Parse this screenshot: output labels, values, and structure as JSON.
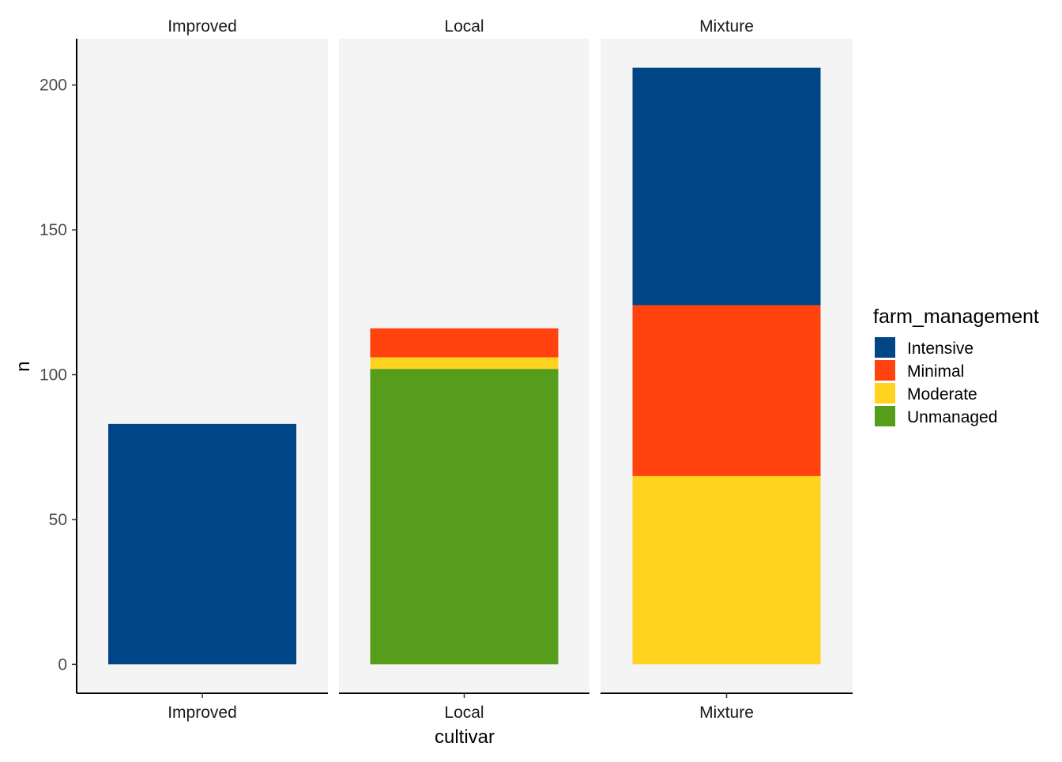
{
  "chart_data": {
    "type": "bar",
    "stacked": true,
    "faceted": true,
    "xlabel": "cultivar",
    "ylabel": "n",
    "ylim": [
      -10,
      216
    ],
    "yticks": [
      0,
      50,
      100,
      150,
      200
    ],
    "legend": {
      "title": "farm_management",
      "position": "right",
      "entries": [
        {
          "name": "Intensive",
          "color": "#004586"
        },
        {
          "name": "Minimal",
          "color": "#FF420E"
        },
        {
          "name": "Moderate",
          "color": "#FFD320"
        },
        {
          "name": "Unmanaged",
          "color": "#579D1C"
        }
      ]
    },
    "panel_background": "#F4F4F4",
    "facets": [
      {
        "strip": "Improved",
        "category": "Improved",
        "segments": [
          {
            "series": "Intensive",
            "value": 83
          }
        ]
      },
      {
        "strip": "Local",
        "category": "Local",
        "segments": [
          {
            "series": "Unmanaged",
            "value": 102
          },
          {
            "series": "Moderate",
            "value": 4
          },
          {
            "series": "Minimal",
            "value": 10
          }
        ]
      },
      {
        "strip": "Mixture",
        "category": "Mixture",
        "segments": [
          {
            "series": "Moderate",
            "value": 65
          },
          {
            "series": "Minimal",
            "value": 59
          },
          {
            "series": "Intensive",
            "value": 82
          }
        ]
      }
    ]
  }
}
